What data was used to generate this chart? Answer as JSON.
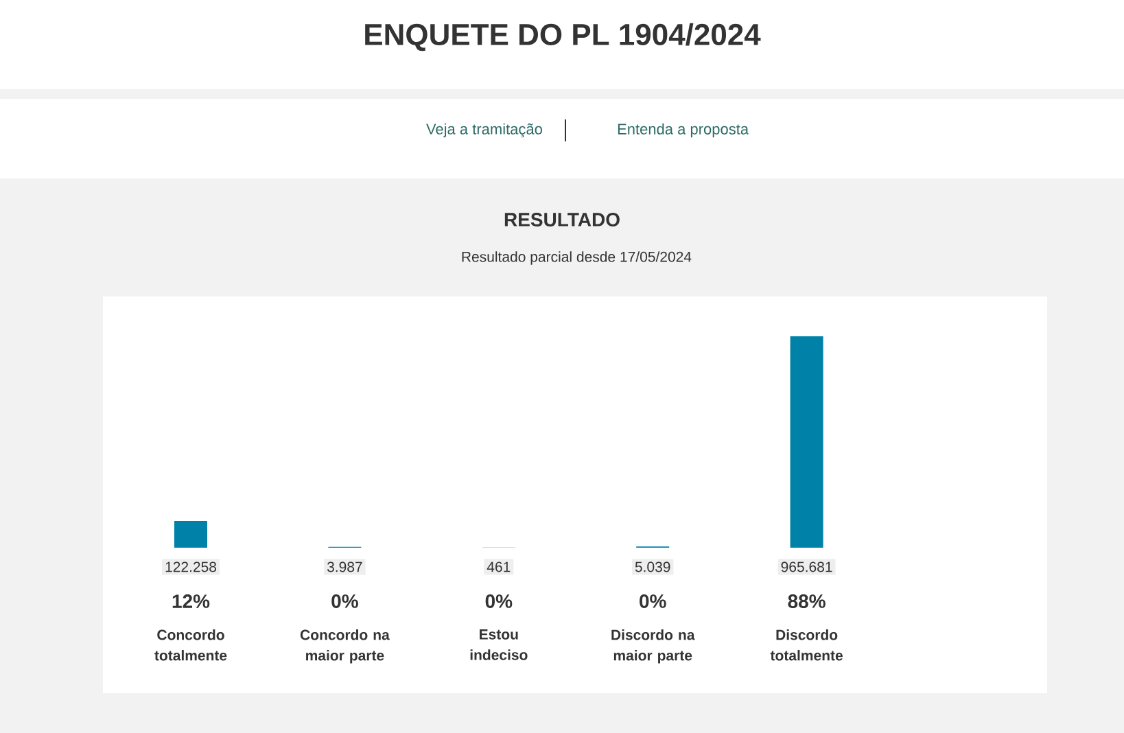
{
  "chart_data": {
    "type": "bar",
    "title": "ENQUETE DO PL 1904/2024",
    "subtitle": "RESULTADO",
    "categories": [
      "Concordo totalmente",
      "Concordo na maior parte",
      "Estou indeciso",
      "Discordo na maior parte",
      "Discordo totalmente"
    ],
    "values": [
      122258,
      3987,
      461,
      5039,
      965681
    ],
    "value_labels": [
      "122.258",
      "3.987",
      "461",
      "5.039",
      "965.681"
    ],
    "color": "#0081a7",
    "annotations": [
      "Veja a tramitação",
      "Entenda a proposta",
      "Resultado parcial desde 17/05/2024",
      "12%",
      "0%",
      "0%",
      "0%",
      "88%"
    ]
  }
}
